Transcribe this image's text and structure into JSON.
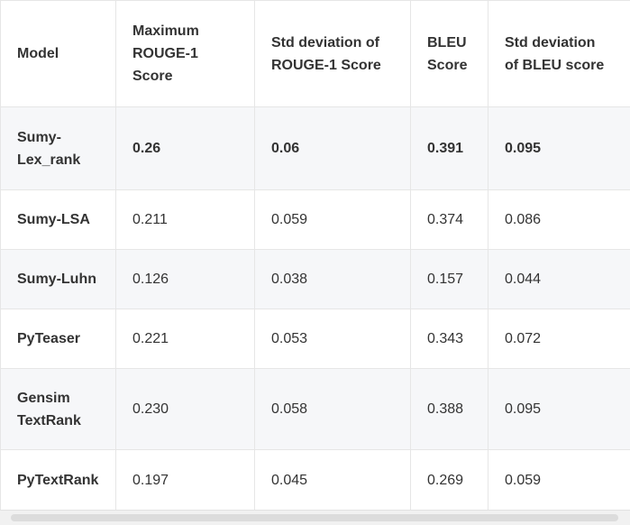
{
  "table": {
    "header": [
      "Model",
      "Maximum ROUGE-1 Score",
      "Std deviation of ROUGE-1 Score",
      "BLEU Score",
      "Std deviation of BLEU score"
    ],
    "rows": [
      [
        "Sumy-Lex_rank",
        "0.26",
        "0.06",
        "0.391",
        "0.095"
      ],
      [
        "Sumy-LSA",
        "0.211",
        "0.059",
        "0.374",
        "0.086"
      ],
      [
        "Sumy-Luhn",
        "0.126",
        "0.038",
        "0.157",
        "0.044"
      ],
      [
        "PyTeaser",
        "0.221",
        "0.053",
        "0.343",
        "0.072"
      ],
      [
        "Gensim TextRank",
        "0.230",
        "0.058",
        "0.388",
        "0.095"
      ],
      [
        "PyTextRank",
        "0.197",
        "0.045",
        "0.269",
        "0.059"
      ]
    ]
  }
}
